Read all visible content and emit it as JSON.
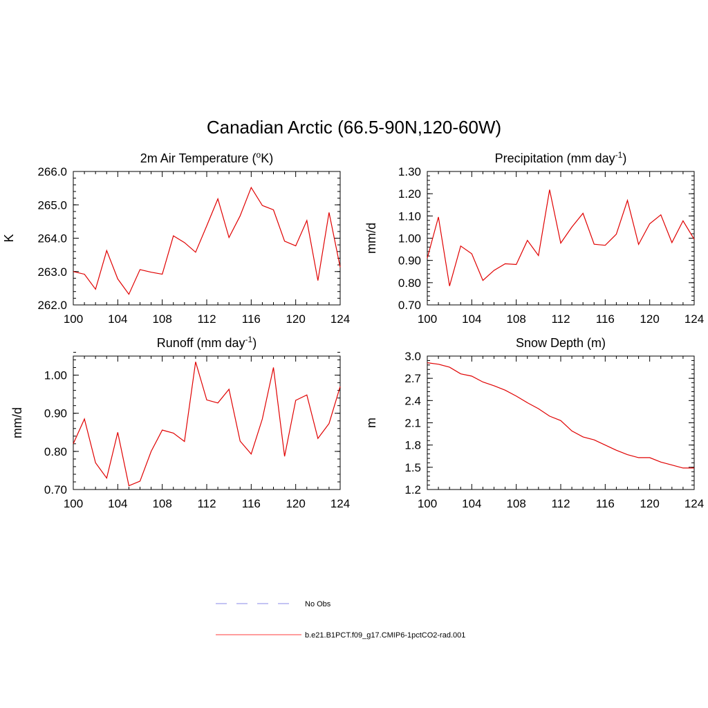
{
  "figure": {
    "title": "Canadian Arctic (66.5-90N,120-60W)"
  },
  "legend": [
    {
      "label": "No Obs",
      "color": "#a0a0ee",
      "dash": true
    },
    {
      "label": "b.e21.B1PCT.f09_g17.CMIP6-1pctCO2-rad.001",
      "color": "#ff6060",
      "dash": false
    }
  ],
  "chart_data": [
    {
      "type": "line",
      "title_text": "2m Air Temperature (",
      "title_sup": "o",
      "title_after": "K)",
      "ylabel": "K",
      "xlim": [
        100,
        124
      ],
      "ylim": [
        262.0,
        266.0
      ],
      "xticks": [
        "100",
        "104",
        "108",
        "112",
        "116",
        "120",
        "124"
      ],
      "yticks": [
        "262.0",
        "263.0",
        "264.0",
        "265.0",
        "266.0"
      ],
      "ytick_values": [
        262.0,
        263.0,
        264.0,
        265.0,
        266.0
      ],
      "yminor_step": 0.2,
      "series": [
        {
          "color": "#e00000",
          "x": [
            100,
            101,
            102,
            103,
            104,
            105,
            106,
            107,
            108,
            109,
            110,
            111,
            112,
            113,
            114,
            115,
            116,
            117,
            118,
            119,
            120,
            121,
            122,
            123,
            124
          ],
          "values": [
            263.0,
            262.92,
            262.47,
            263.63,
            262.78,
            262.32,
            263.06,
            262.98,
            262.92,
            264.07,
            263.87,
            263.58,
            264.37,
            265.18,
            264.02,
            264.67,
            265.52,
            264.98,
            264.85,
            263.91,
            263.77,
            264.53,
            262.73,
            264.77,
            263.13
          ]
        }
      ]
    },
    {
      "type": "line",
      "title_text": "Precipitation (mm day",
      "title_sup": "-1",
      "title_after": ")",
      "ylabel": "mm/d",
      "xlim": [
        100,
        124
      ],
      "ylim": [
        0.7,
        1.3
      ],
      "xticks": [
        "100",
        "104",
        "108",
        "112",
        "116",
        "120",
        "124"
      ],
      "yticks": [
        "0.70",
        "0.80",
        "0.90",
        "1.00",
        "1.10",
        "1.20",
        "1.30"
      ],
      "ytick_values": [
        0.7,
        0.8,
        0.9,
        1.0,
        1.1,
        1.2,
        1.3
      ],
      "yminor_step": 0.02,
      "series": [
        {
          "color": "#e00000",
          "x": [
            100,
            101,
            102,
            103,
            104,
            105,
            106,
            107,
            108,
            109,
            110,
            111,
            112,
            113,
            114,
            115,
            116,
            117,
            118,
            119,
            120,
            121,
            122,
            123,
            124
          ],
          "values": [
            0.91,
            1.095,
            0.785,
            0.965,
            0.93,
            0.81,
            0.855,
            0.885,
            0.882,
            0.99,
            0.922,
            1.218,
            0.978,
            1.05,
            1.112,
            0.973,
            0.968,
            1.018,
            1.17,
            0.972,
            1.065,
            1.105,
            0.98,
            1.078,
            0.995
          ]
        }
      ]
    },
    {
      "type": "line",
      "title_text": "Runoff (mm day",
      "title_sup": "-1",
      "title_after": ")",
      "ylabel": "mm/d",
      "xlim": [
        100,
        124
      ],
      "ylim": [
        0.7,
        1.05
      ],
      "xticks": [
        "100",
        "104",
        "108",
        "112",
        "116",
        "120",
        "124"
      ],
      "yticks": [
        "0.70",
        "0.80",
        "0.90",
        "1.00"
      ],
      "ytick_values": [
        0.7,
        0.8,
        0.9,
        1.0
      ],
      "yminor_step": 0.02,
      "series": [
        {
          "color": "#e00000",
          "x": [
            100,
            101,
            102,
            103,
            104,
            105,
            106,
            107,
            108,
            109,
            110,
            111,
            112,
            113,
            114,
            115,
            116,
            117,
            118,
            119,
            120,
            121,
            122,
            123,
            124
          ],
          "values": [
            0.82,
            0.885,
            0.77,
            0.73,
            0.85,
            0.71,
            0.722,
            0.8,
            0.856,
            0.848,
            0.826,
            1.035,
            0.935,
            0.927,
            0.963,
            0.827,
            0.793,
            0.885,
            1.02,
            0.787,
            0.934,
            0.948,
            0.834,
            0.873,
            0.97
          ]
        }
      ]
    },
    {
      "type": "line",
      "title_text": "Snow Depth (m)",
      "title_sup": "",
      "title_after": "",
      "ylabel": "m",
      "xlim": [
        100,
        124
      ],
      "ylim": [
        1.2,
        3.0
      ],
      "xticks": [
        "100",
        "104",
        "108",
        "112",
        "116",
        "120",
        "124"
      ],
      "yticks": [
        "1.2",
        "1.5",
        "1.8",
        "2.1",
        "2.4",
        "2.7",
        "3.0"
      ],
      "ytick_values": [
        1.2,
        1.5,
        1.8,
        2.1,
        2.4,
        2.7,
        3.0
      ],
      "yminor_step": 0.06,
      "series": [
        {
          "color": "#e00000",
          "x": [
            100,
            101,
            102,
            103,
            104,
            105,
            106,
            107,
            108,
            109,
            110,
            111,
            112,
            113,
            114,
            115,
            116,
            117,
            118,
            119,
            120,
            121,
            122,
            123,
            124
          ],
          "values": [
            2.91,
            2.89,
            2.85,
            2.76,
            2.73,
            2.65,
            2.6,
            2.54,
            2.46,
            2.37,
            2.29,
            2.19,
            2.13,
            1.99,
            1.91,
            1.87,
            1.8,
            1.73,
            1.67,
            1.63,
            1.63,
            1.57,
            1.53,
            1.49,
            1.49
          ]
        }
      ]
    }
  ]
}
